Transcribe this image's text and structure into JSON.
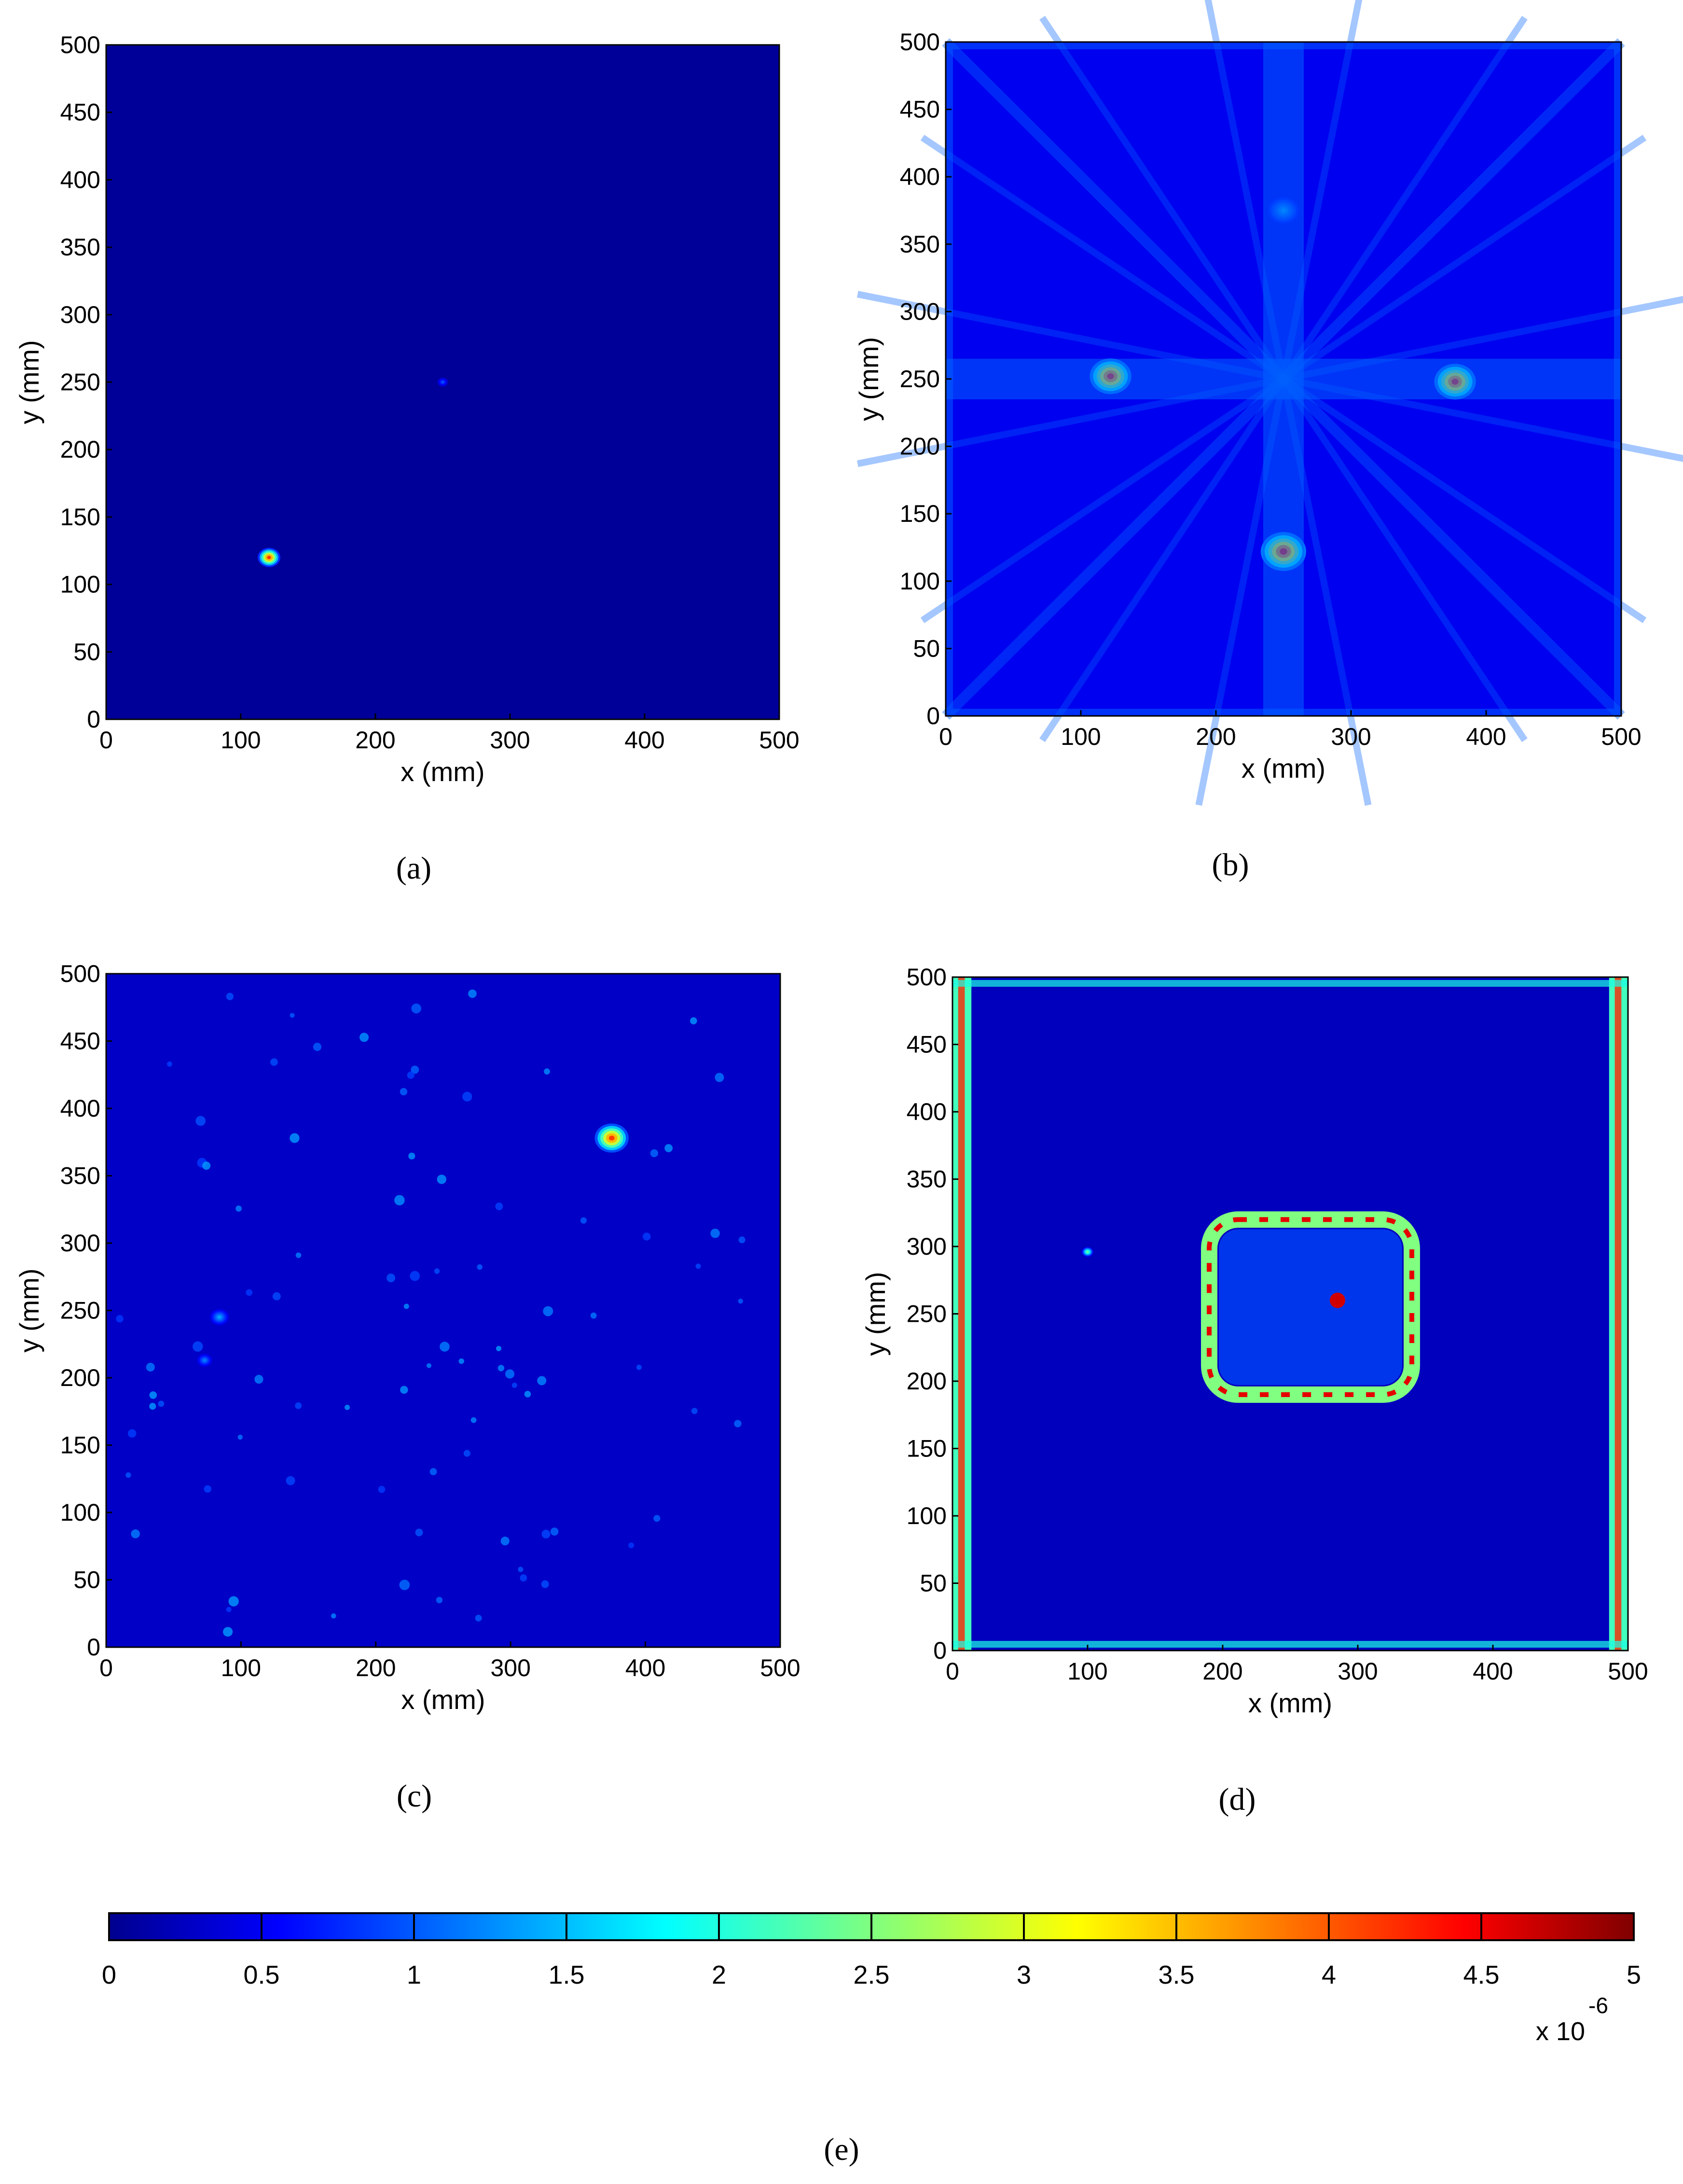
{
  "panels": [
    {
      "id": "a",
      "label": "(a)",
      "xlabel": "x (mm)",
      "ylabel": "y (mm)",
      "xlim": [
        0,
        500
      ],
      "ylim": [
        0,
        500
      ],
      "xticks": [
        0,
        100,
        200,
        300,
        400,
        500
      ],
      "yticks": [
        0,
        50,
        100,
        150,
        200,
        250,
        300,
        350,
        400,
        450,
        500
      ],
      "background_level": 0.12,
      "features": [
        {
          "kind": "spot",
          "x": 121,
          "y": 120,
          "r": 6,
          "peak": 4.8
        },
        {
          "kind": "spot",
          "x": 250,
          "y": 250,
          "r": 3,
          "peak": 1.2
        }
      ]
    },
    {
      "id": "b",
      "label": "(b)",
      "xlabel": "x (mm)",
      "ylabel": "y (mm)",
      "xlim": [
        0,
        500
      ],
      "ylim": [
        0,
        500
      ],
      "xticks": [
        0,
        100,
        200,
        300,
        400,
        500
      ],
      "yticks": [
        0,
        50,
        100,
        150,
        200,
        250,
        300,
        350,
        400,
        450,
        500
      ],
      "background_level": 0.55,
      "features": [
        {
          "kind": "spot",
          "x": 122,
          "y": 252,
          "r": 11,
          "peak": 4.8
        },
        {
          "kind": "spot",
          "x": 377,
          "y": 248,
          "r": 11,
          "peak": 4.8
        },
        {
          "kind": "spot",
          "x": 250,
          "y": 122,
          "r": 12,
          "peak": 4.9
        },
        {
          "kind": "spot",
          "x": 250,
          "y": 375,
          "r": 8,
          "peak": 1.6
        },
        {
          "kind": "streaks",
          "level": 1.1
        }
      ]
    },
    {
      "id": "c",
      "label": "(c)",
      "xlabel": "x (mm)",
      "ylabel": "y (mm)",
      "xlim": [
        0,
        500
      ],
      "ylim": [
        0,
        500
      ],
      "xticks": [
        0,
        100,
        200,
        300,
        400,
        500
      ],
      "yticks": [
        0,
        50,
        100,
        150,
        200,
        250,
        300,
        350,
        400,
        450,
        500
      ],
      "background_level": 0.35,
      "features": [
        {
          "kind": "spot",
          "x": 375,
          "y": 378,
          "r": 9,
          "peak": 4.7
        },
        {
          "kind": "spot",
          "x": 84,
          "y": 245,
          "r": 5,
          "peak": 1.6
        },
        {
          "kind": "spot",
          "x": 73,
          "y": 213,
          "r": 4,
          "peak": 1.4
        },
        {
          "kind": "speckle",
          "level": 0.9
        }
      ]
    },
    {
      "id": "d",
      "label": "(d)",
      "xlabel": "x (mm)",
      "ylabel": "y (mm)",
      "xlim": [
        0,
        500
      ],
      "ylim": [
        0,
        500
      ],
      "xticks": [
        0,
        100,
        200,
        300,
        400,
        500
      ],
      "yticks": [
        0,
        50,
        100,
        150,
        200,
        250,
        300,
        350,
        400,
        450,
        500
      ],
      "background_level": 0.3,
      "features": [
        {
          "kind": "ring",
          "x0": 190,
          "x1": 340,
          "y0": 190,
          "y1": 320,
          "peak": 4.5
        },
        {
          "kind": "edges",
          "peak": 4.2
        },
        {
          "kind": "spot",
          "x": 100,
          "y": 296,
          "r": 3,
          "peak": 2.8
        }
      ]
    }
  ],
  "colorbar": {
    "label": "(e)",
    "ticks": [
      "0",
      "0.5",
      "1",
      "1.5",
      "2",
      "2.5",
      "3",
      "3.5",
      "4",
      "4.5",
      "5"
    ],
    "range": [
      0,
      5
    ],
    "multiplier": "x 10",
    "exponent": "-6",
    "colormap": "jet"
  },
  "chart_data": [
    {
      "type": "heatmap",
      "panel": "a",
      "xlabel": "x (mm)",
      "ylabel": "y (mm)",
      "xlim": [
        0,
        500
      ],
      "ylim": [
        0,
        500
      ],
      "value_range": [
        0,
        5e-06
      ],
      "hotspots": [
        {
          "x": 121,
          "y": 120,
          "value": 4.8e-06
        },
        {
          "x": 250,
          "y": 250,
          "value": 1.2e-06
        }
      ]
    },
    {
      "type": "heatmap",
      "panel": "b",
      "xlabel": "x (mm)",
      "ylabel": "y (mm)",
      "xlim": [
        0,
        500
      ],
      "ylim": [
        0,
        500
      ],
      "value_range": [
        0,
        5e-06
      ],
      "hotspots": [
        {
          "x": 122,
          "y": 252,
          "value": 4.8e-06
        },
        {
          "x": 377,
          "y": 248,
          "value": 4.8e-06
        },
        {
          "x": 250,
          "y": 122,
          "value": 4.9e-06
        },
        {
          "x": 250,
          "y": 375,
          "value": 1.6e-06
        }
      ]
    },
    {
      "type": "heatmap",
      "panel": "c",
      "xlabel": "x (mm)",
      "ylabel": "y (mm)",
      "xlim": [
        0,
        500
      ],
      "ylim": [
        0,
        500
      ],
      "value_range": [
        0,
        5e-06
      ],
      "hotspots": [
        {
          "x": 375,
          "y": 378,
          "value": 4.7e-06
        },
        {
          "x": 84,
          "y": 245,
          "value": 1.6e-06
        }
      ]
    },
    {
      "type": "heatmap",
      "panel": "d",
      "xlabel": "x (mm)",
      "ylabel": "y (mm)",
      "xlim": [
        0,
        500
      ],
      "ylim": [
        0,
        500
      ],
      "value_range": [
        0,
        5e-06
      ],
      "hotspots": [
        {
          "region": "rectangular outline",
          "x_range": [
            190,
            340
          ],
          "y_range": [
            190,
            320
          ],
          "value": 4.5e-06
        },
        {
          "region": "left and right plate edges",
          "value": 4.2e-06
        }
      ]
    }
  ]
}
